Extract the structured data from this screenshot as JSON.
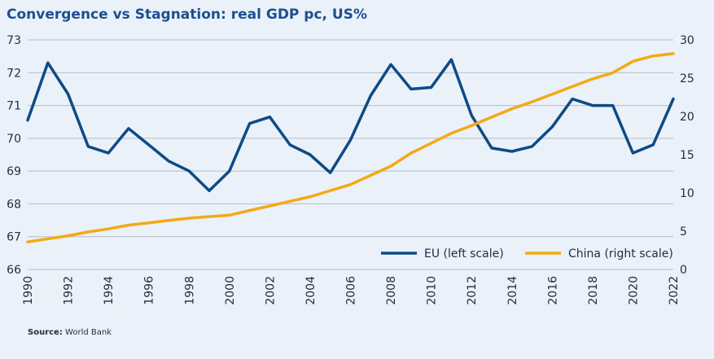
{
  "title": "Convergence vs Stagnation: real GDP pc, US%",
  "source": {
    "label": "Source:",
    "text": "World Bank"
  },
  "colors": {
    "eu": "#0e4a86",
    "china": "#f2aa14",
    "grid": "#b4bec9"
  },
  "chart_data": {
    "type": "line",
    "title": "Convergence vs Stagnation: real GDP pc, US%",
    "xlabel": "",
    "ylabel_left": "",
    "ylabel_right": "",
    "x": [
      1990,
      1991,
      1992,
      1993,
      1994,
      1995,
      1996,
      1997,
      1998,
      1999,
      2000,
      2001,
      2002,
      2003,
      2004,
      2005,
      2006,
      2007,
      2008,
      2009,
      2010,
      2011,
      2012,
      2013,
      2014,
      2015,
      2016,
      2017,
      2018,
      2019,
      2020,
      2021,
      2022
    ],
    "xticks": [
      "1990",
      "1992",
      "1994",
      "1996",
      "1998",
      "2000",
      "2002",
      "2004",
      "2006",
      "2008",
      "2010",
      "2012",
      "2014",
      "2016",
      "2018",
      "2020",
      "2022"
    ],
    "ylim_left": [
      66,
      73
    ],
    "yticks_left": [
      "66",
      "67",
      "68",
      "69",
      "70",
      "71",
      "72",
      "73"
    ],
    "ylim_right": [
      0,
      30
    ],
    "yticks_right": [
      "0",
      "5",
      "10",
      "15",
      "20",
      "25",
      "30"
    ],
    "grid": true,
    "legend_position": "bottom-right",
    "series": [
      {
        "name": "EU (left scale)",
        "axis": "left",
        "values": [
          70.55,
          72.3,
          71.35,
          69.75,
          69.55,
          70.3,
          69.8,
          69.3,
          69.0,
          68.4,
          69.0,
          70.45,
          70.65,
          69.8,
          69.5,
          68.95,
          69.95,
          71.3,
          72.25,
          71.5,
          71.55,
          72.4,
          70.7,
          69.7,
          69.6,
          69.75,
          70.35,
          71.2,
          71.0,
          71.0,
          69.55,
          69.8,
          71.2
        ]
      },
      {
        "name": "China (right scale)",
        "axis": "right",
        "values": [
          3.6,
          4.0,
          4.4,
          4.9,
          5.3,
          5.8,
          6.1,
          6.4,
          6.7,
          6.9,
          7.1,
          7.7,
          8.3,
          8.9,
          9.5,
          10.3,
          11.1,
          12.3,
          13.5,
          15.2,
          16.5,
          17.8,
          18.8,
          19.9,
          21.0,
          21.9,
          22.9,
          23.9,
          24.9,
          25.7,
          27.2,
          27.9,
          28.2
        ]
      }
    ]
  }
}
